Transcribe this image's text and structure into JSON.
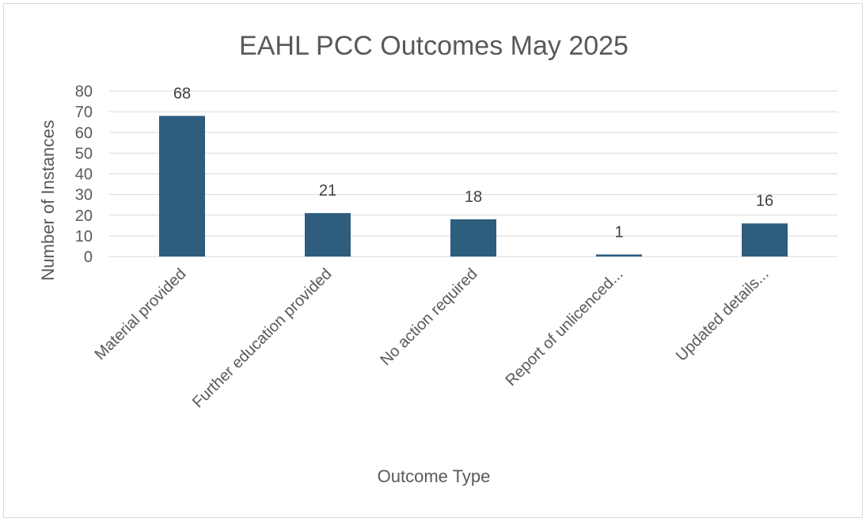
{
  "chart_data": {
    "type": "bar",
    "title": "EAHL PCC Outcomes May 2025",
    "xlabel": "Outcome Type",
    "ylabel": "Number of Instances",
    "categories": [
      "Material provided",
      "Further education provided",
      "No action required",
      "Report of unlicenced...",
      "Updated details..."
    ],
    "values": [
      68,
      21,
      18,
      1,
      16
    ],
    "data_labels": [
      "68",
      "21",
      "18",
      "1",
      "16"
    ],
    "ylim": [
      0,
      80
    ],
    "y_ticks": [
      "0",
      "10",
      "20",
      "30",
      "40",
      "50",
      "60",
      "70",
      "80"
    ],
    "grid": true,
    "legend": "none",
    "bar_color": "#2e5d7d"
  }
}
